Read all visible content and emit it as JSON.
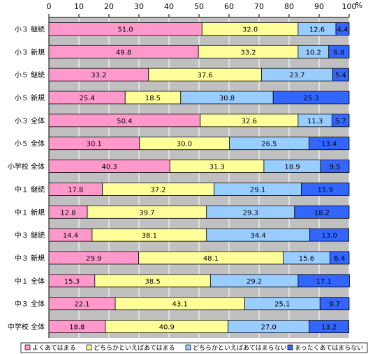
{
  "chart_data": {
    "type": "bar",
    "orientation": "horizontal",
    "stacked": true,
    "unit": "%",
    "xlim": [
      0,
      100
    ],
    "xticks": [
      0,
      10,
      20,
      30,
      40,
      50,
      60,
      70,
      80,
      90,
      100
    ],
    "grid": true,
    "legend_position": "bottom",
    "categories": [
      "小３ 継続",
      "小３ 新規",
      "小５ 継続",
      "小５ 新規",
      "小３ 全体",
      "小５ 全体",
      "小学校 全体",
      "中１ 継続",
      "中１ 新規",
      "中３ 継続",
      "中３ 新規",
      "中１ 全体",
      "中３ 全体",
      "中学校 全体"
    ],
    "series": [
      {
        "name": "よくあてはまる",
        "color": "#ff99cc",
        "values": [
          51.0,
          49.8,
          33.2,
          25.4,
          50.4,
          30.1,
          40.3,
          17.8,
          12.8,
          14.4,
          29.9,
          15.3,
          22.1,
          18.8
        ],
        "labels": [
          "51.0",
          "49.8",
          "33.2",
          "25.4",
          "50.4",
          "30.1",
          "40.3",
          "17.8",
          "12.8",
          "14.4",
          "29.9",
          "15.3",
          "22.1",
          "18.8"
        ]
      },
      {
        "name": "どちらかといえばあてはまる",
        "color": "#ffff99",
        "values": [
          32.0,
          33.2,
          37.6,
          18.5,
          32.6,
          30.0,
          31.3,
          37.2,
          39.7,
          38.1,
          48.1,
          38.5,
          43.1,
          40.9
        ],
        "labels": [
          "32.0",
          "33.2",
          "37.6",
          "18.5",
          "32.6",
          "30.0",
          "31.3",
          "37.2",
          "39.7",
          "38.1",
          "48.1",
          "38.5",
          "43.1",
          "40.9"
        ]
      },
      {
        "name": "どちらかといえばあてはまらない",
        "color": "#99ccff",
        "values": [
          12.6,
          10.2,
          23.7,
          30.8,
          11.3,
          26.5,
          18.9,
          29.1,
          29.3,
          34.4,
          15.6,
          29.2,
          25.1,
          27.0
        ],
        "labels": [
          "12.6",
          "10.2",
          "23.7",
          "30.8",
          "11.3",
          "26.5",
          "18.9",
          "29.1",
          "29.3",
          "34.4",
          "15.6",
          "29.2",
          "25.1",
          "27.0"
        ]
      },
      {
        "name": "まったくあてはまらない",
        "color": "#3366ff",
        "values": [
          4.4,
          6.8,
          5.4,
          25.3,
          5.7,
          13.4,
          9.5,
          15.9,
          18.2,
          13.0,
          6.4,
          17.1,
          9.7,
          13.2
        ],
        "labels": [
          "4.4",
          "6.8",
          "5.4",
          "25.3",
          "5.7",
          "13.4",
          "9.5",
          "15.9",
          "18.2",
          "13.0",
          "6.4",
          "17.1",
          "9.7",
          "13.2"
        ]
      }
    ]
  }
}
